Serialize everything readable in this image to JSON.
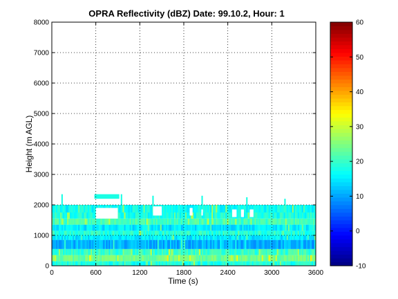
{
  "chart_data": {
    "type": "heatmap",
    "title": "OPRA Reflectivity (dBZ)  Date: 99.10.2, Hour: 1",
    "xlabel": "Time (s)",
    "ylabel": "Height (m AGL)",
    "xlim": [
      0,
      3600
    ],
    "ylim": [
      0,
      8000
    ],
    "x_ticks": [
      "0",
      "600",
      "1200",
      "1800",
      "2400",
      "3000",
      "3600"
    ],
    "y_ticks": [
      "0",
      "1000",
      "2000",
      "3000",
      "4000",
      "5000",
      "6000",
      "7000",
      "8000"
    ],
    "grid": true,
    "colorbar": {
      "colormap": "jet",
      "range": [
        -10,
        60
      ],
      "ticks": [
        "-10",
        "0",
        "10",
        "20",
        "30",
        "40",
        "50",
        "60"
      ]
    },
    "layers": [
      {
        "height_range_m": [
          0,
          150
        ],
        "dbz": 18
      },
      {
        "height_range_m": [
          150,
          350
        ],
        "dbz": 24
      },
      {
        "height_range_m": [
          350,
          550
        ],
        "dbz": 20
      },
      {
        "height_range_m": [
          550,
          850
        ],
        "dbz": 11
      },
      {
        "height_range_m": [
          850,
          1000
        ],
        "dbz": 15
      },
      {
        "height_range_m": [
          1000,
          1150
        ],
        "dbz": 19
      },
      {
        "height_range_m": [
          1150,
          1350
        ],
        "dbz": 15
      },
      {
        "height_range_m": [
          1350,
          1550
        ],
        "dbz": 21
      },
      {
        "height_range_m": [
          1550,
          1750
        ],
        "dbz": 18
      },
      {
        "height_range_m": [
          1750,
          2000
        ],
        "dbz": 17
      }
    ],
    "clear_patches": [
      {
        "time_range_s": [
          600,
          900
        ],
        "height_range_m": [
          1550,
          1900
        ]
      },
      {
        "time_range_s": [
          1380,
          1500
        ],
        "height_range_m": [
          1650,
          1950
        ]
      },
      {
        "time_range_s": [
          2460,
          2520
        ],
        "height_range_m": [
          1600,
          1850
        ]
      },
      {
        "time_range_s": [
          2580,
          2620
        ],
        "height_range_m": [
          1600,
          1850
        ]
      },
      {
        "time_range_s": [
          2700,
          2750
        ],
        "height_range_m": [
          1600,
          1850
        ]
      },
      {
        "time_range_s": [
          1880,
          1920
        ],
        "height_range_m": [
          1650,
          1900
        ]
      },
      {
        "time_range_s": [
          2040,
          2060
        ],
        "height_range_m": [
          1650,
          1850
        ]
      }
    ],
    "echo_patches": [
      {
        "time_range_s": [
          580,
          920
        ],
        "height_range_m": [
          2200,
          2350
        ],
        "dbz": 18
      },
      {
        "time_range_s": [
          130,
          150
        ],
        "height_range_m": [
          2000,
          2350
        ],
        "dbz": 18
      },
      {
        "time_range_s": [
          940,
          960
        ],
        "height_range_m": [
          2000,
          2350
        ],
        "dbz": 18
      },
      {
        "time_range_s": [
          1370,
          1390
        ],
        "height_range_m": [
          2000,
          2300
        ],
        "dbz": 18
      },
      {
        "time_range_s": [
          2040,
          2060
        ],
        "height_range_m": [
          2000,
          2300
        ],
        "dbz": 18
      },
      {
        "time_range_s": [
          2650,
          2670
        ],
        "height_range_m": [
          2000,
          2250
        ],
        "dbz": 18
      },
      {
        "time_range_s": [
          3170,
          3190
        ],
        "height_range_m": [
          2000,
          2200
        ],
        "dbz": 18
      }
    ]
  }
}
